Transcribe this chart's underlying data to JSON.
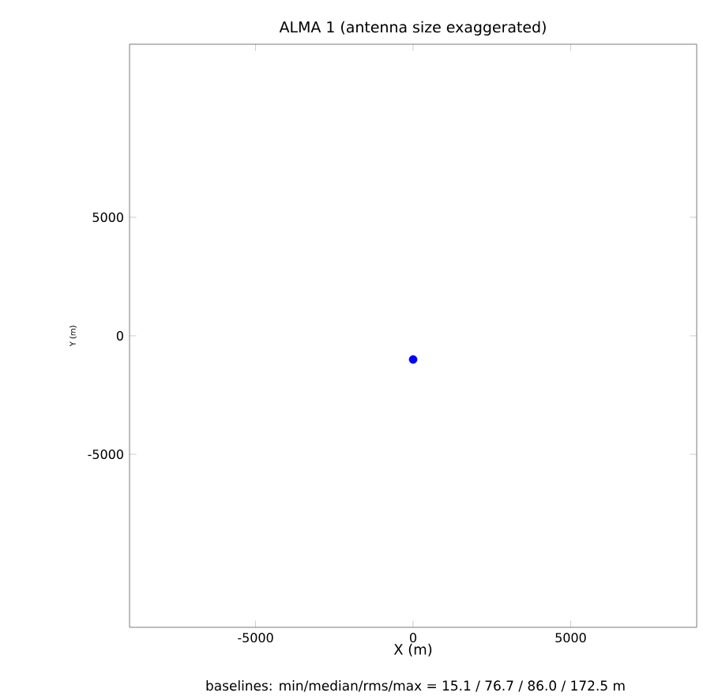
{
  "chart_data": {
    "type": "scatter",
    "title": "ALMA 1 (antenna size exaggerated)",
    "xlabel": "X (m)",
    "ylabel": "Y (m)",
    "x": [
      0
    ],
    "values": [
      -1000
    ],
    "color": "#0000ff",
    "xlim": [
      -9000,
      9000
    ],
    "ylim": [
      -12300,
      12300
    ],
    "xticks": [
      -5000,
      0,
      5000
    ],
    "yticks": [
      -5000,
      0,
      5000
    ],
    "annotations": [
      "baselines: min/median/rms/max = 15.1 / 76.7 / 86.0 / 172.5 m"
    ]
  }
}
